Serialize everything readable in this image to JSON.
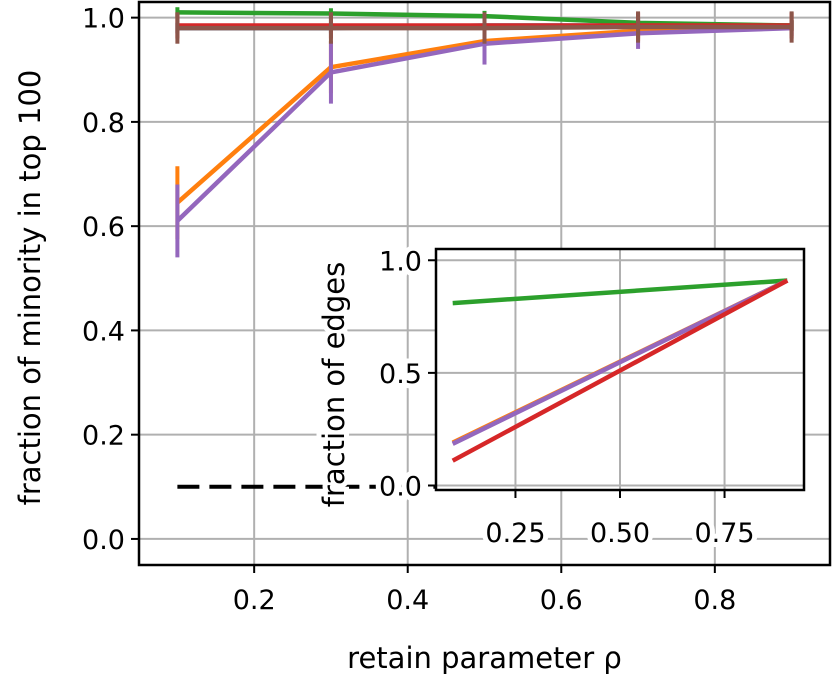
{
  "chart_data": [
    {
      "type": "line",
      "title": "",
      "xlabel": "retain parameter ρ",
      "ylabel": "fraction of minority in top 100",
      "xlim": [
        0.05,
        0.95
      ],
      "ylim": [
        -0.05,
        1.03
      ],
      "xticks": [
        0.2,
        0.4,
        0.6,
        0.8
      ],
      "xtick_labels": [
        "0.2",
        "0.4",
        "0.6",
        "0.8"
      ],
      "yticks": [
        0.0,
        0.2,
        0.4,
        0.6,
        0.8,
        1.0
      ],
      "ytick_labels": [
        "0.0",
        "0.2",
        "0.4",
        "0.6",
        "0.8",
        "1.0"
      ],
      "grid": true,
      "legend": "none",
      "x": [
        0.1,
        0.3,
        0.5,
        0.7,
        0.9
      ],
      "series": [
        {
          "color": "#1f77b4",
          "values": [
            0.98,
            0.98,
            0.985,
            0.985,
            0.985
          ],
          "err": [
            0.01,
            0.01,
            0.01,
            0.01,
            0.01
          ]
        },
        {
          "color": "#ff7f0e",
          "values": [
            0.645,
            0.905,
            0.955,
            0.975,
            0.985
          ],
          "err": [
            0.07,
            0.05,
            0.03,
            0.02,
            0.01
          ]
        },
        {
          "color": "#9467bd",
          "values": [
            0.61,
            0.895,
            0.95,
            0.97,
            0.98
          ],
          "err": [
            0.07,
            0.06,
            0.04,
            0.03,
            0.015
          ]
        },
        {
          "color": "#2ca02c",
          "values": [
            1.01,
            1.008,
            1.003,
            0.99,
            0.985
          ],
          "err": [
            0.01,
            0.01,
            0.01,
            0.01,
            0.01
          ]
        },
        {
          "color": "#d62728",
          "values": [
            0.985,
            0.985,
            0.985,
            0.985,
            0.985
          ],
          "err": [
            0.025,
            0.025,
            0.025,
            0.025,
            0.025
          ]
        },
        {
          "color": "#8c564b",
          "values": [
            0.98,
            0.98,
            0.98,
            0.982,
            0.982
          ],
          "err": [
            0.03,
            0.03,
            0.03,
            0.03,
            0.03
          ]
        }
      ],
      "reference_line": {
        "color": "#000000",
        "x": [
          0.1,
          0.9
        ],
        "y": [
          0.1,
          0.1
        ],
        "style": "dashed"
      }
    },
    {
      "type": "line",
      "title": "",
      "xlabel": "",
      "ylabel": "fraction of edges",
      "xlim": [
        0.06,
        0.94
      ],
      "ylim": [
        -0.02,
        1.05
      ],
      "xticks": [
        0.25,
        0.5,
        0.75
      ],
      "xtick_labels": [
        "0.25",
        "0.50",
        "0.75"
      ],
      "yticks": [
        0.0,
        0.5,
        1.0
      ],
      "ytick_labels": [
        "0.0",
        "0.5",
        "1.0"
      ],
      "grid": true,
      "legend": "none",
      "x": [
        0.1,
        0.9
      ],
      "series": [
        {
          "color": "#2ca02c",
          "values": [
            0.81,
            0.91
          ]
        },
        {
          "color": "#ff7f0e",
          "values": [
            0.19,
            0.91
          ]
        },
        {
          "color": "#9467bd",
          "values": [
            0.185,
            0.91
          ]
        },
        {
          "color": "#d62728",
          "values": [
            0.11,
            0.91
          ]
        }
      ]
    }
  ]
}
